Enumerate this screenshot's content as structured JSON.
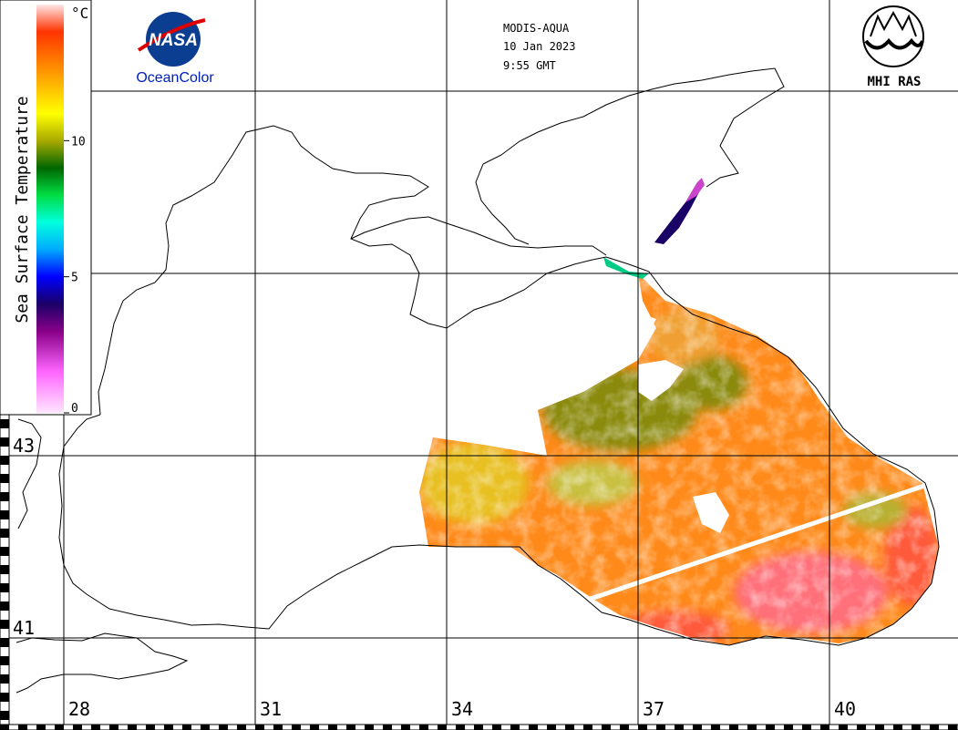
{
  "satellite": "MODIS-AQUA",
  "date": "10 Jan 2023",
  "time": "9:55 GMT",
  "nasa_logo_text": "NASA",
  "brand_left": "OceanColor",
  "brand_right": "MHI RAS",
  "colorbar": {
    "unit": "°C",
    "title": "Sea Surface Temperature",
    "ticks": [
      {
        "label": "10",
        "value": 10
      },
      {
        "label": "5",
        "value": 5
      },
      {
        "label": "0",
        "value": 0
      }
    ],
    "range": [
      0,
      15
    ],
    "stops": [
      {
        "value": 0,
        "color": "#ffe6ff"
      },
      {
        "value": 1.5,
        "color": "#ff66ff"
      },
      {
        "value": 3,
        "color": "#880088"
      },
      {
        "value": 4,
        "color": "#1a0066"
      },
      {
        "value": 5,
        "color": "#0000ff"
      },
      {
        "value": 6,
        "color": "#00aaff"
      },
      {
        "value": 7,
        "color": "#00ffdd"
      },
      {
        "value": 8,
        "color": "#00dd44"
      },
      {
        "value": 9,
        "color": "#006600"
      },
      {
        "value": 10,
        "color": "#aaaa00"
      },
      {
        "value": 11,
        "color": "#ffff00"
      },
      {
        "value": 12.5,
        "color": "#ff9900"
      },
      {
        "value": 14,
        "color": "#ff3300"
      },
      {
        "value": 15,
        "color": "#ffe6e6"
      }
    ]
  },
  "longitudes": [
    "28",
    "31",
    "34",
    "37",
    "40"
  ],
  "latitudes": [
    "43",
    "41"
  ],
  "colors": {
    "coast": "#000000",
    "grid": "#000000",
    "cold_water": "#8a8a10",
    "mid_water": "#e8c020",
    "warm_water": "#ff8a1a",
    "hot_water": "#ff5a3a",
    "peak_water": "#ff6f7a",
    "strait_cold": "#1a0066",
    "strait_mid": "#00cc88",
    "gap": "#ffffff"
  }
}
